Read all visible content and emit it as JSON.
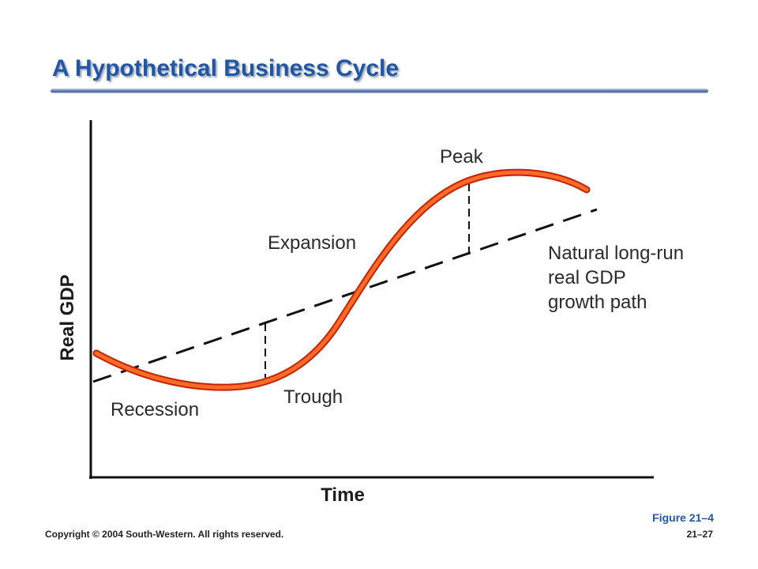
{
  "slide": {
    "title": "A Hypothetical Business Cycle",
    "figure_number": "Figure 21–4",
    "copyright": "Copyright © 2004 South-Western. All rights reserved.",
    "page_number": "21–27"
  },
  "diagram": {
    "axes": {
      "x_label": "Time",
      "y_label": "Real GDP"
    },
    "labels": {
      "peak": "Peak",
      "expansion": "Expansion",
      "trough": "Trough",
      "recession": "Recession",
      "trend_line1": "Natural long-run",
      "trend_line2": "real GDP",
      "trend_line3": "growth path"
    },
    "colors": {
      "cycle_curve": "#ff5a1a",
      "cycle_curve_outline": "#c0240a",
      "title": "#2255a4"
    }
  }
}
